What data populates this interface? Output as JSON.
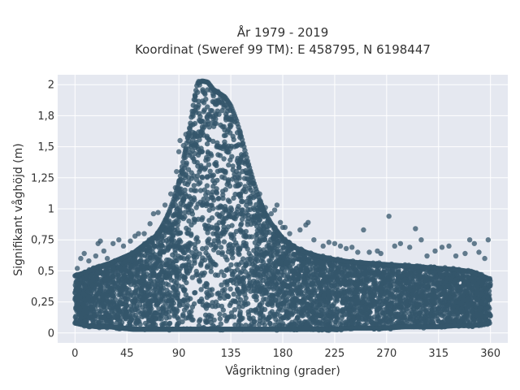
{
  "chart_data": {
    "type": "scatter",
    "title_lines": [
      "År 1979 - 2019",
      "Koordinat (Sweref 99 TM): E 458795, N 6198447"
    ],
    "xlabel": "Vågriktning (grader)",
    "ylabel": "Signifikant våghöjd (m)",
    "xlim": [
      -15,
      375
    ],
    "ylim": [
      -0.08,
      2.08
    ],
    "x_ticks": [
      0,
      45,
      90,
      135,
      180,
      225,
      270,
      315,
      360
    ],
    "x_tick_labels": [
      "0",
      "45",
      "90",
      "135",
      "180",
      "225",
      "270",
      "315",
      "360"
    ],
    "y_ticks": [
      0,
      0.25,
      0.5,
      0.75,
      1,
      1.25,
      1.5,
      1.75,
      2
    ],
    "y_tick_labels": [
      "0",
      "0,25",
      "0,5",
      "0,75",
      "1",
      "1,25",
      "1,5",
      "1,8",
      "2"
    ],
    "grid": true,
    "marker_color": "#34566b",
    "plot_background": "#e5e8f0",
    "envelope": {
      "x": [
        0,
        10,
        20,
        30,
        40,
        50,
        60,
        70,
        75,
        80,
        85,
        90,
        95,
        100,
        103,
        106,
        110,
        115,
        120,
        125,
        130,
        135,
        140,
        145,
        150,
        155,
        160,
        165,
        170,
        175,
        180,
        190,
        200,
        210,
        225,
        240,
        255,
        270,
        285,
        300,
        315,
        330,
        345,
        360
      ],
      "upper": [
        0.47,
        0.5,
        0.54,
        0.57,
        0.61,
        0.65,
        0.72,
        0.79,
        0.86,
        0.95,
        1.07,
        1.22,
        1.45,
        1.7,
        1.88,
        2.02,
        2.04,
        2.03,
        1.97,
        1.94,
        1.91,
        1.84,
        1.72,
        1.56,
        1.38,
        1.22,
        1.08,
        0.97,
        0.89,
        0.83,
        0.77,
        0.7,
        0.66,
        0.63,
        0.6,
        0.58,
        0.57,
        0.56,
        0.55,
        0.54,
        0.53,
        0.52,
        0.5,
        0.44
      ],
      "lower": [
        0.07,
        0.05,
        0.04,
        0.04,
        0.03,
        0.02,
        0.02,
        0.02,
        0.02,
        0.02,
        0.02,
        0.02,
        0.02,
        0.02,
        0.02,
        0.02,
        0.02,
        0.02,
        0.02,
        0.02,
        0.02,
        0.02,
        0.02,
        0.02,
        0.02,
        0.02,
        0.02,
        0.02,
        0.02,
        0.02,
        0.02,
        0.02,
        0.02,
        0.02,
        0.02,
        0.03,
        0.03,
        0.03,
        0.04,
        0.04,
        0.04,
        0.05,
        0.05,
        0.07
      ]
    },
    "outliers": [
      {
        "x": 2,
        "y": 0.52
      },
      {
        "x": 5,
        "y": 0.6
      },
      {
        "x": 8,
        "y": 0.64
      },
      {
        "x": 12,
        "y": 0.58
      },
      {
        "x": 18,
        "y": 0.62
      },
      {
        "x": 20,
        "y": 0.72
      },
      {
        "x": 22,
        "y": 0.74
      },
      {
        "x": 25,
        "y": 0.66
      },
      {
        "x": 28,
        "y": 0.6
      },
      {
        "x": 33,
        "y": 0.72
      },
      {
        "x": 38,
        "y": 0.75
      },
      {
        "x": 42,
        "y": 0.7
      },
      {
        "x": 48,
        "y": 0.74
      },
      {
        "x": 52,
        "y": 0.78
      },
      {
        "x": 55,
        "y": 0.8
      },
      {
        "x": 60,
        "y": 0.8
      },
      {
        "x": 65,
        "y": 0.88
      },
      {
        "x": 68,
        "y": 0.96
      },
      {
        "x": 72,
        "y": 0.97
      },
      {
        "x": 78,
        "y": 1.03
      },
      {
        "x": 83,
        "y": 1.12
      },
      {
        "x": 87,
        "y": 1.17
      },
      {
        "x": 88,
        "y": 1.3
      },
      {
        "x": 90,
        "y": 1.46
      },
      {
        "x": 91,
        "y": 1.55
      },
      {
        "x": 94,
        "y": 1.51
      },
      {
        "x": 96,
        "y": 1.6
      },
      {
        "x": 160,
        "y": 1.12
      },
      {
        "x": 165,
        "y": 1.01
      },
      {
        "x": 170,
        "y": 0.96
      },
      {
        "x": 173,
        "y": 0.99
      },
      {
        "x": 175,
        "y": 1.03
      },
      {
        "x": 178,
        "y": 0.89
      },
      {
        "x": 180,
        "y": 0.85
      },
      {
        "x": 182,
        "y": 0.85
      },
      {
        "x": 186,
        "y": 0.8
      },
      {
        "x": 195,
        "y": 0.83
      },
      {
        "x": 200,
        "y": 0.87
      },
      {
        "x": 202,
        "y": 0.89
      },
      {
        "x": 207,
        "y": 0.75
      },
      {
        "x": 215,
        "y": 0.7
      },
      {
        "x": 220,
        "y": 0.73
      },
      {
        "x": 225,
        "y": 0.72
      },
      {
        "x": 230,
        "y": 0.7
      },
      {
        "x": 235,
        "y": 0.68
      },
      {
        "x": 240,
        "y": 0.69
      },
      {
        "x": 245,
        "y": 0.65
      },
      {
        "x": 250,
        "y": 0.83
      },
      {
        "x": 255,
        "y": 0.65
      },
      {
        "x": 262,
        "y": 0.66
      },
      {
        "x": 265,
        "y": 0.64
      },
      {
        "x": 272,
        "y": 0.94
      },
      {
        "x": 277,
        "y": 0.7
      },
      {
        "x": 282,
        "y": 0.72
      },
      {
        "x": 290,
        "y": 0.69
      },
      {
        "x": 295,
        "y": 0.84
      },
      {
        "x": 300,
        "y": 0.75
      },
      {
        "x": 305,
        "y": 0.62
      },
      {
        "x": 312,
        "y": 0.66
      },
      {
        "x": 318,
        "y": 0.69
      },
      {
        "x": 324,
        "y": 0.7
      },
      {
        "x": 330,
        "y": 0.62
      },
      {
        "x": 338,
        "y": 0.64
      },
      {
        "x": 342,
        "y": 0.75
      },
      {
        "x": 346,
        "y": 0.72
      },
      {
        "x": 350,
        "y": 0.65
      },
      {
        "x": 355,
        "y": 0.6
      },
      {
        "x": 358,
        "y": 0.75
      }
    ]
  }
}
